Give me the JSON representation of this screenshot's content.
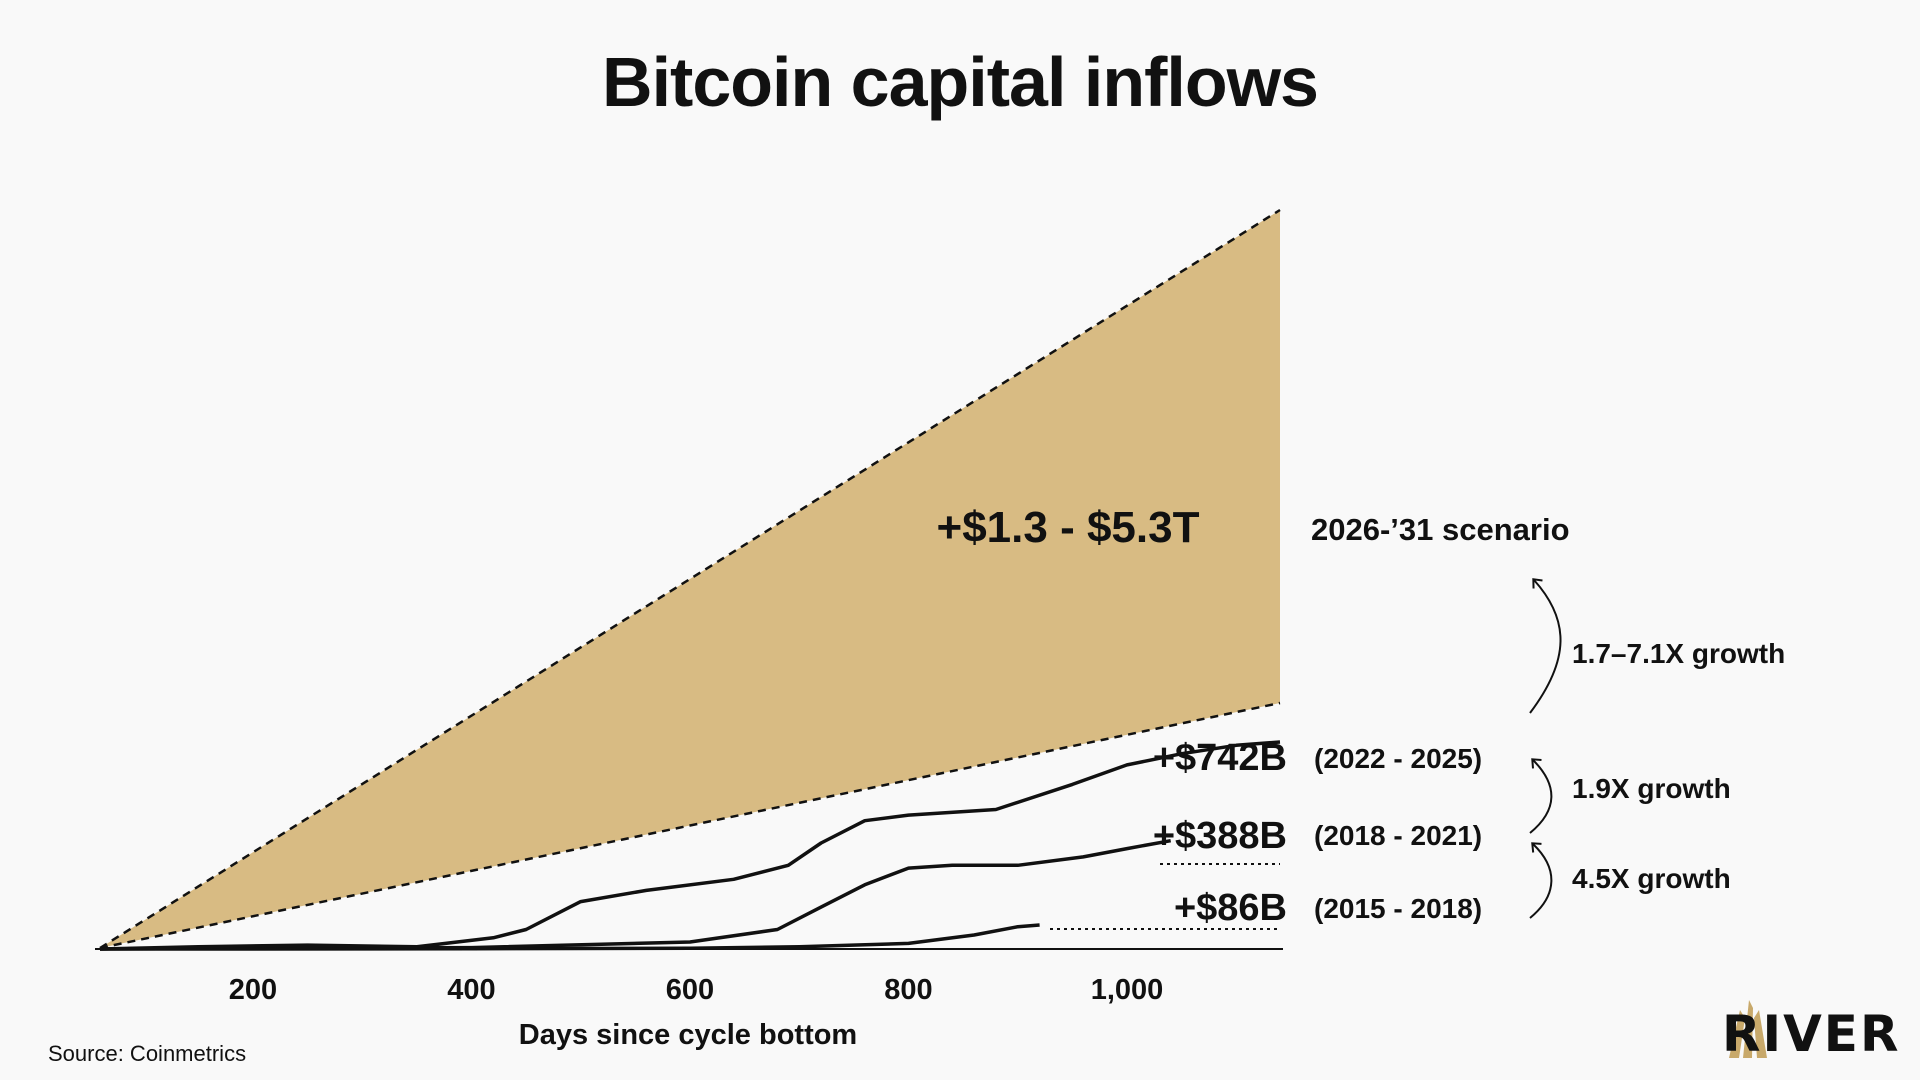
{
  "title": "Bitcoin capital inflows",
  "source": "Source: Coinmetrics",
  "brand": "RIVER",
  "colors": {
    "scenario_fill": "#d8bb83",
    "line": "#111111"
  },
  "chart_data": {
    "type": "line",
    "title": "Bitcoin capital inflows",
    "xlabel": "Days since cycle bottom",
    "ylabel": "",
    "xlim": [
      60,
      1140
    ],
    "x_ticks": [
      200,
      400,
      600,
      800,
      1000
    ],
    "x_tick_labels": [
      "200",
      "400",
      "600",
      "800",
      "1,000"
    ],
    "grid": false,
    "series": [
      {
        "name": "(2015 - 2018)",
        "total_label": "+$86B",
        "x": [
          60,
          200,
          400,
          600,
          700,
          800,
          860,
          900,
          920
        ],
        "y": [
          0,
          0,
          1,
          3,
          8,
          20,
          50,
          80,
          86
        ]
      },
      {
        "name": "(2018 - 2021)",
        "total_label": "+$388B",
        "x": [
          60,
          200,
          400,
          600,
          680,
          720,
          760,
          800,
          840,
          900,
          960,
          1000,
          1040
        ],
        "y": [
          0,
          2,
          5,
          25,
          70,
          150,
          230,
          290,
          300,
          300,
          330,
          360,
          388
        ]
      },
      {
        "name": "(2022 - 2025)",
        "total_label": "+$742B",
        "x": [
          60,
          150,
          250,
          350,
          420,
          450,
          500,
          560,
          640,
          690,
          720,
          760,
          800,
          880,
          950,
          1000,
          1050,
          1100,
          1140
        ],
        "y": [
          0,
          8,
          14,
          8,
          40,
          70,
          170,
          210,
          250,
          300,
          380,
          460,
          480,
          500,
          590,
          660,
          700,
          730,
          742
        ]
      }
    ],
    "scenario": {
      "name": "2026-’31 scenario",
      "range_label": "+$1.3 - $5.3T",
      "low": 1300,
      "high": 5300
    },
    "annotations": [
      "4.5X growth",
      "1.9X growth",
      "1.7–7.1X growth"
    ]
  }
}
